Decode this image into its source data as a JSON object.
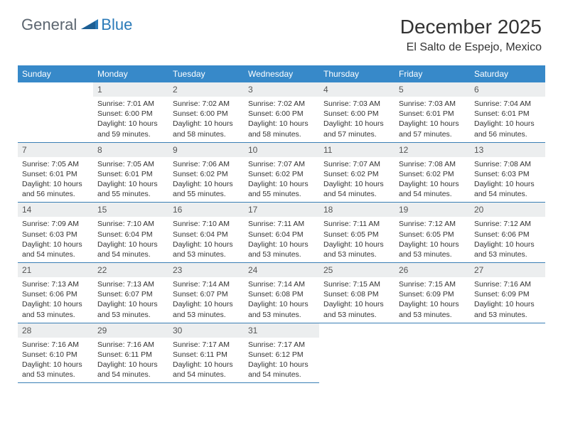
{
  "logo": {
    "text1": "General",
    "text2": "Blue"
  },
  "title": "December 2025",
  "location": "El Salto de Espejo, Mexico",
  "colors": {
    "header_bg": "#3789c9",
    "header_text": "#ffffff",
    "daynum_bg": "#eceeef",
    "border": "#3a7fb5",
    "logo_gray": "#5c6670",
    "logo_blue": "#2a7ab8"
  },
  "weekdays": [
    "Sunday",
    "Monday",
    "Tuesday",
    "Wednesday",
    "Thursday",
    "Friday",
    "Saturday"
  ],
  "weeks": [
    [
      null,
      {
        "n": "1",
        "sr": "Sunrise: 7:01 AM",
        "ss": "Sunset: 6:00 PM",
        "d1": "Daylight: 10 hours",
        "d2": "and 59 minutes."
      },
      {
        "n": "2",
        "sr": "Sunrise: 7:02 AM",
        "ss": "Sunset: 6:00 PM",
        "d1": "Daylight: 10 hours",
        "d2": "and 58 minutes."
      },
      {
        "n": "3",
        "sr": "Sunrise: 7:02 AM",
        "ss": "Sunset: 6:00 PM",
        "d1": "Daylight: 10 hours",
        "d2": "and 58 minutes."
      },
      {
        "n": "4",
        "sr": "Sunrise: 7:03 AM",
        "ss": "Sunset: 6:00 PM",
        "d1": "Daylight: 10 hours",
        "d2": "and 57 minutes."
      },
      {
        "n": "5",
        "sr": "Sunrise: 7:03 AM",
        "ss": "Sunset: 6:01 PM",
        "d1": "Daylight: 10 hours",
        "d2": "and 57 minutes."
      },
      {
        "n": "6",
        "sr": "Sunrise: 7:04 AM",
        "ss": "Sunset: 6:01 PM",
        "d1": "Daylight: 10 hours",
        "d2": "and 56 minutes."
      }
    ],
    [
      {
        "n": "7",
        "sr": "Sunrise: 7:05 AM",
        "ss": "Sunset: 6:01 PM",
        "d1": "Daylight: 10 hours",
        "d2": "and 56 minutes."
      },
      {
        "n": "8",
        "sr": "Sunrise: 7:05 AM",
        "ss": "Sunset: 6:01 PM",
        "d1": "Daylight: 10 hours",
        "d2": "and 55 minutes."
      },
      {
        "n": "9",
        "sr": "Sunrise: 7:06 AM",
        "ss": "Sunset: 6:02 PM",
        "d1": "Daylight: 10 hours",
        "d2": "and 55 minutes."
      },
      {
        "n": "10",
        "sr": "Sunrise: 7:07 AM",
        "ss": "Sunset: 6:02 PM",
        "d1": "Daylight: 10 hours",
        "d2": "and 55 minutes."
      },
      {
        "n": "11",
        "sr": "Sunrise: 7:07 AM",
        "ss": "Sunset: 6:02 PM",
        "d1": "Daylight: 10 hours",
        "d2": "and 54 minutes."
      },
      {
        "n": "12",
        "sr": "Sunrise: 7:08 AM",
        "ss": "Sunset: 6:02 PM",
        "d1": "Daylight: 10 hours",
        "d2": "and 54 minutes."
      },
      {
        "n": "13",
        "sr": "Sunrise: 7:08 AM",
        "ss": "Sunset: 6:03 PM",
        "d1": "Daylight: 10 hours",
        "d2": "and 54 minutes."
      }
    ],
    [
      {
        "n": "14",
        "sr": "Sunrise: 7:09 AM",
        "ss": "Sunset: 6:03 PM",
        "d1": "Daylight: 10 hours",
        "d2": "and 54 minutes."
      },
      {
        "n": "15",
        "sr": "Sunrise: 7:10 AM",
        "ss": "Sunset: 6:04 PM",
        "d1": "Daylight: 10 hours",
        "d2": "and 54 minutes."
      },
      {
        "n": "16",
        "sr": "Sunrise: 7:10 AM",
        "ss": "Sunset: 6:04 PM",
        "d1": "Daylight: 10 hours",
        "d2": "and 53 minutes."
      },
      {
        "n": "17",
        "sr": "Sunrise: 7:11 AM",
        "ss": "Sunset: 6:04 PM",
        "d1": "Daylight: 10 hours",
        "d2": "and 53 minutes."
      },
      {
        "n": "18",
        "sr": "Sunrise: 7:11 AM",
        "ss": "Sunset: 6:05 PM",
        "d1": "Daylight: 10 hours",
        "d2": "and 53 minutes."
      },
      {
        "n": "19",
        "sr": "Sunrise: 7:12 AM",
        "ss": "Sunset: 6:05 PM",
        "d1": "Daylight: 10 hours",
        "d2": "and 53 minutes."
      },
      {
        "n": "20",
        "sr": "Sunrise: 7:12 AM",
        "ss": "Sunset: 6:06 PM",
        "d1": "Daylight: 10 hours",
        "d2": "and 53 minutes."
      }
    ],
    [
      {
        "n": "21",
        "sr": "Sunrise: 7:13 AM",
        "ss": "Sunset: 6:06 PM",
        "d1": "Daylight: 10 hours",
        "d2": "and 53 minutes."
      },
      {
        "n": "22",
        "sr": "Sunrise: 7:13 AM",
        "ss": "Sunset: 6:07 PM",
        "d1": "Daylight: 10 hours",
        "d2": "and 53 minutes."
      },
      {
        "n": "23",
        "sr": "Sunrise: 7:14 AM",
        "ss": "Sunset: 6:07 PM",
        "d1": "Daylight: 10 hours",
        "d2": "and 53 minutes."
      },
      {
        "n": "24",
        "sr": "Sunrise: 7:14 AM",
        "ss": "Sunset: 6:08 PM",
        "d1": "Daylight: 10 hours",
        "d2": "and 53 minutes."
      },
      {
        "n": "25",
        "sr": "Sunrise: 7:15 AM",
        "ss": "Sunset: 6:08 PM",
        "d1": "Daylight: 10 hours",
        "d2": "and 53 minutes."
      },
      {
        "n": "26",
        "sr": "Sunrise: 7:15 AM",
        "ss": "Sunset: 6:09 PM",
        "d1": "Daylight: 10 hours",
        "d2": "and 53 minutes."
      },
      {
        "n": "27",
        "sr": "Sunrise: 7:16 AM",
        "ss": "Sunset: 6:09 PM",
        "d1": "Daylight: 10 hours",
        "d2": "and 53 minutes."
      }
    ],
    [
      {
        "n": "28",
        "sr": "Sunrise: 7:16 AM",
        "ss": "Sunset: 6:10 PM",
        "d1": "Daylight: 10 hours",
        "d2": "and 53 minutes."
      },
      {
        "n": "29",
        "sr": "Sunrise: 7:16 AM",
        "ss": "Sunset: 6:11 PM",
        "d1": "Daylight: 10 hours",
        "d2": "and 54 minutes."
      },
      {
        "n": "30",
        "sr": "Sunrise: 7:17 AM",
        "ss": "Sunset: 6:11 PM",
        "d1": "Daylight: 10 hours",
        "d2": "and 54 minutes."
      },
      {
        "n": "31",
        "sr": "Sunrise: 7:17 AM",
        "ss": "Sunset: 6:12 PM",
        "d1": "Daylight: 10 hours",
        "d2": "and 54 minutes."
      },
      null,
      null,
      null
    ]
  ]
}
